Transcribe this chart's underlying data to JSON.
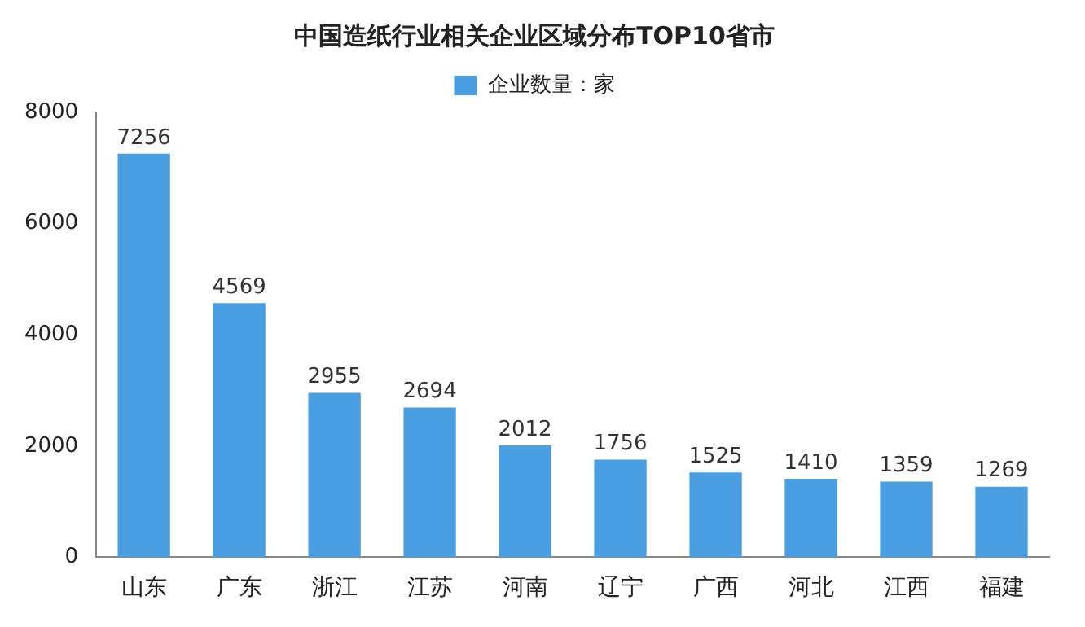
{
  "chart_data": {
    "type": "bar",
    "title": "中国造纸行业相关企业区域分布TOP10省市",
    "categories": [
      "山东",
      "广东",
      "浙江",
      "江苏",
      "河南",
      "辽宁",
      "广西",
      "河北",
      "江西",
      "福建"
    ],
    "series": [
      {
        "name": "企业数量：家",
        "color": "#4a9fe3",
        "values": [
          7256,
          4569,
          2955,
          2694,
          2012,
          1756,
          1525,
          1410,
          1359,
          1269
        ]
      }
    ],
    "ylim": [
      0,
      8000
    ],
    "yticks": [
      0,
      2000,
      4000,
      6000,
      8000
    ],
    "grid": false,
    "legend": "top",
    "data_labels": true
  }
}
